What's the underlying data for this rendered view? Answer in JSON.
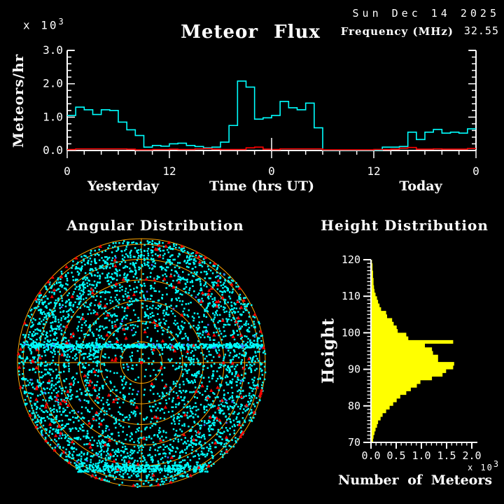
{
  "header": {
    "title": "Meteor Flux",
    "date": "Sun Dec 14 2025",
    "frequency_label": "Frequency (MHz)",
    "frequency_value": "32.55"
  },
  "colors": {
    "background": "#000000",
    "axis": "#ffffff",
    "flux_primary": "#00ffff",
    "flux_secondary": "#ff0000",
    "polar_grid": "#ffa500",
    "scatter_main": "#00ffff",
    "scatter_red": "#ff0000",
    "scatter_blue": "#4466ff",
    "histogram": "#ffff00"
  },
  "chart_data": [
    {
      "id": "flux",
      "type": "line",
      "style": "step",
      "title": "Meteor Flux",
      "ylabel": "Meteors/hr",
      "xlabel": "Time (hrs UT)",
      "x_section_left": "Yesterday",
      "x_section_right": "Today",
      "y_scale_label": "x 10",
      "y_scale_exponent": "3",
      "ylim": [
        0,
        3.0
      ],
      "y_tick_values": [
        0,
        1,
        2,
        3
      ],
      "y_tick_labels": [
        "0.0",
        "1.0",
        "2.0",
        "3.0"
      ],
      "y_minor_step": 0.2,
      "x_hours_total": 48,
      "x_tick_hours": [
        0,
        12,
        24,
        36,
        48
      ],
      "x_tick_labels": [
        "0",
        "12",
        "0",
        "12",
        "0"
      ],
      "x_minor_step_hours": 2,
      "bin_hours": 1,
      "midnight_marker_hour": 24,
      "series": [
        {
          "name": "meteor-rate",
          "color": "#00ffff",
          "values": [
            1.05,
            1.3,
            1.22,
            1.08,
            1.22,
            1.2,
            0.85,
            0.62,
            0.45,
            0.1,
            0.15,
            0.13,
            0.2,
            0.22,
            0.15,
            0.12,
            0.08,
            0.1,
            0.25,
            0.75,
            2.08,
            1.9,
            0.94,
            0.98,
            1.05,
            1.47,
            1.28,
            1.22,
            1.42,
            0.68,
            0,
            0,
            0,
            0,
            0,
            0,
            0,
            0.1,
            0.1,
            0.12,
            0.55,
            0.33,
            0.55,
            0.63,
            0.52,
            0.55,
            0.52,
            0.65
          ]
        },
        {
          "name": "red-rate",
          "color": "#ff0000",
          "values": [
            0.03,
            0.05,
            0.05,
            0.05,
            0.05,
            0.05,
            0.05,
            0.04,
            0.02,
            0.02,
            0.03,
            0.03,
            0.04,
            0.03,
            0.03,
            0.05,
            0.06,
            0.04,
            0.03,
            0.03,
            0.03,
            0.08,
            0.1,
            0.04,
            0.03,
            0.05,
            0.05,
            0.05,
            0.05,
            0.05,
            0.02,
            0.02,
            0.02,
            0.02,
            0.02,
            0.02,
            0.03,
            0.03,
            0.04,
            0.07,
            0.09,
            0.04,
            0.04,
            0.05,
            0.04,
            0.04,
            0.04,
            0.06
          ]
        }
      ]
    },
    {
      "id": "angular",
      "type": "scatter",
      "projection": "polar-sky-map",
      "title": "Angular Distribution",
      "grid_color": "#ffa500",
      "n_rings": 6,
      "double_outer_ring": true,
      "point_colors": {
        "main": "#00ffff",
        "secondary": "#ff0000",
        "tertiary": "#4466ff"
      },
      "scatter_params": {
        "seed": 7,
        "n_uniform": 3200,
        "n_annulus": 800,
        "annulus_inner_frac": 0.7,
        "center_void_radius": 52,
        "center_void_reject": 0.55,
        "band1": {
          "dy": -25,
          "half_thickness": 3,
          "n": 500,
          "chord_frac": 0.98
        },
        "band2": {
          "dy": 150,
          "half_thickness": 5,
          "n": 300
        },
        "n_red": 170,
        "n_red_rim": 36,
        "n_blue": 45,
        "n_blue_band": 22
      }
    },
    {
      "id": "height",
      "type": "bar",
      "orientation": "horizontal",
      "title": "Height Distribution",
      "ylabel": "Height",
      "xlabel": "Number of Meteors",
      "x_scale_label": "x 10",
      "x_scale_exponent": "3",
      "bar_color": "#ffff00",
      "height_bins_km": {
        "start": 70,
        "end": 120,
        "step": 1
      },
      "values": [
        0.04,
        0.05,
        0.07,
        0.09,
        0.12,
        0.14,
        0.19,
        0.23,
        0.3,
        0.37,
        0.44,
        0.51,
        0.58,
        0.7,
        0.79,
        0.91,
        0.98,
        1.21,
        1.42,
        1.49,
        1.63,
        1.65,
        1.33,
        1.33,
        1.23,
        1.21,
        1.07,
        1.63,
        0.74,
        0.7,
        0.53,
        0.51,
        0.45,
        0.42,
        0.32,
        0.3,
        0.2,
        0.17,
        0.14,
        0.12,
        0.09,
        0.07,
        0.06,
        0.05,
        0.05,
        0.04,
        0.04,
        0.03,
        0.03,
        0.02
      ],
      "xlim": [
        0,
        2.0
      ],
      "x_tick_values": [
        0,
        0.5,
        1.0,
        1.5,
        2.0
      ],
      "x_tick_labels": [
        "0.0",
        "0.5",
        "1.0",
        "1.5",
        "2.0"
      ],
      "x_minor_step": 0.1,
      "y_tick_values": [
        70,
        80,
        90,
        100,
        110,
        120
      ],
      "y_tick_labels": [
        "70",
        "80",
        "90",
        "100",
        "110",
        "120"
      ],
      "y_minor_step": 1
    }
  ]
}
